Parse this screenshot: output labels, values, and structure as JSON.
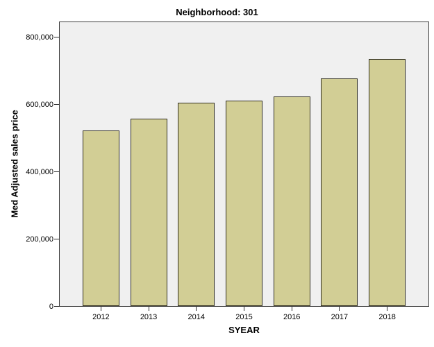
{
  "chart_data": {
    "type": "bar",
    "title": "Neighborhood: 301",
    "xlabel": "SYEAR",
    "ylabel": "Med Adjusted sales price",
    "categories": [
      "2012",
      "2013",
      "2014",
      "2015",
      "2016",
      "2017",
      "2018"
    ],
    "values": [
      521000,
      556000,
      603000,
      611000,
      622000,
      675000,
      733000
    ],
    "ylim": [
      0,
      847000
    ],
    "yticks": {
      "values": [
        0,
        200000,
        400000,
        600000,
        800000
      ],
      "labels": [
        "0",
        "200,000",
        "400,000",
        "600,000",
        "800,000"
      ]
    },
    "grid": "off",
    "legend": "none",
    "colors": {
      "bar_fill": "#d2ce95",
      "bar_border": "#2f2d20",
      "plot_background": "#f0f0f0",
      "plot_border": "#3c3c3c",
      "tick": "#2b2b2b",
      "text": "#000000",
      "page_background": "#ffffff"
    }
  }
}
